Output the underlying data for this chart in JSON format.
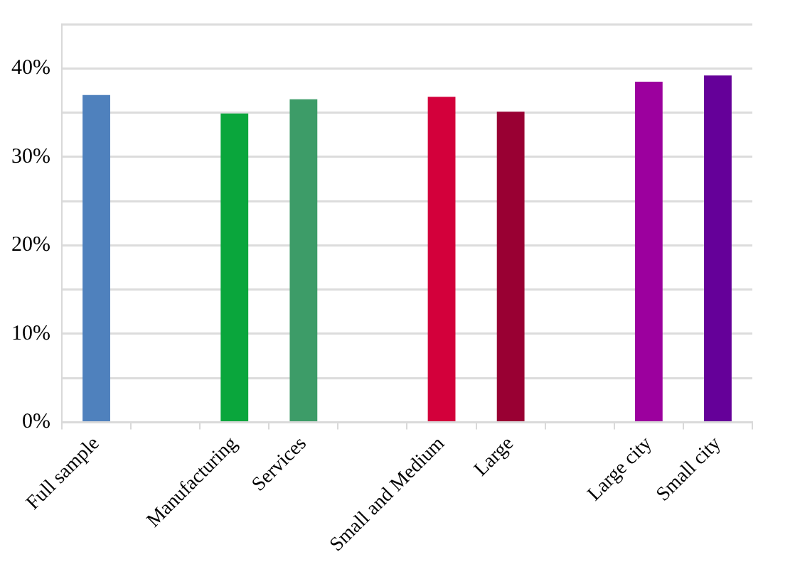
{
  "chart_data": {
    "type": "bar",
    "categories": [
      "Full sample",
      null,
      "Manufacturing",
      "Services",
      null,
      "Small and Medium",
      "Large",
      null,
      "Large city",
      "Small city"
    ],
    "values": [
      37.0,
      null,
      34.9,
      36.5,
      null,
      36.8,
      35.1,
      null,
      38.5,
      39.2
    ],
    "colors": [
      "#4f81bd",
      null,
      "#0aa63c",
      "#3d9c68",
      null,
      "#d3003b",
      "#990033",
      null,
      "#9c009e",
      "#650099"
    ],
    "ylim": [
      0,
      45
    ],
    "yticks": [
      {
        "value": 0,
        "label": "0%"
      },
      {
        "value": 5,
        "label": null
      },
      {
        "value": 10,
        "label": "10%"
      },
      {
        "value": 15,
        "label": null
      },
      {
        "value": 20,
        "label": "20%"
      },
      {
        "value": 25,
        "label": null
      },
      {
        "value": 30,
        "label": "30%"
      },
      {
        "value": 35,
        "label": null
      },
      {
        "value": 40,
        "label": "40%"
      },
      {
        "value": 45,
        "label": null
      }
    ],
    "grid": "y",
    "legend": false
  }
}
